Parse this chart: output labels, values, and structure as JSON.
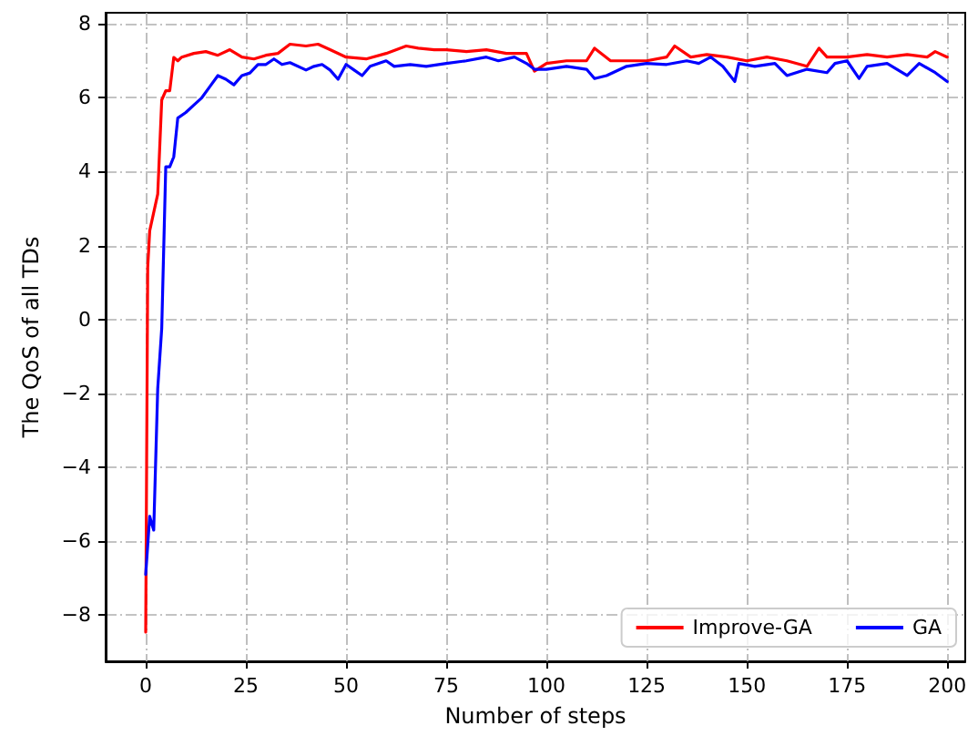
{
  "chart_data": {
    "type": "line",
    "xlabel": "Number of steps",
    "ylabel": "The QoS of all TDs",
    "xlim": [
      -10,
      204.5
    ],
    "ylim": [
      -9.25,
      8.3
    ],
    "xticks": [
      0,
      25,
      50,
      75,
      100,
      125,
      150,
      175,
      200
    ],
    "yticks": [
      -8,
      -6,
      -4,
      -2,
      0,
      2,
      4,
      6,
      8
    ],
    "grid": true,
    "legend": "bottom right",
    "marker": "none",
    "line_style": "solid",
    "series": [
      {
        "name": "Improve-GA",
        "color": "#ff0000",
        "x": [
          0,
          0.5,
          1,
          3,
          4,
          5,
          6,
          7,
          8,
          9,
          12,
          15,
          18,
          21,
          24,
          27,
          30,
          33,
          36,
          40,
          43,
          46,
          50,
          55,
          60,
          65,
          68,
          72,
          75,
          80,
          85,
          90,
          95,
          97,
          100,
          105,
          110,
          112,
          116,
          120,
          125,
          130,
          132,
          136,
          140,
          145,
          150,
          155,
          160,
          165,
          168,
          170,
          175,
          180,
          185,
          190,
          195,
          197,
          200
        ],
        "values": [
          -8.46,
          1.41,
          2.4,
          3.39,
          5.94,
          6.19,
          6.19,
          7.09,
          7.0,
          7.1,
          7.2,
          7.25,
          7.15,
          7.3,
          7.1,
          7.05,
          7.15,
          7.2,
          7.45,
          7.4,
          7.45,
          7.3,
          7.1,
          7.05,
          7.2,
          7.4,
          7.34,
          7.3,
          7.3,
          7.25,
          7.3,
          7.2,
          7.2,
          6.72,
          6.93,
          7.0,
          7.0,
          7.34,
          7.0,
          7.0,
          7.0,
          7.1,
          7.4,
          7.1,
          7.17,
          7.1,
          7.0,
          7.1,
          7.0,
          6.85,
          7.34,
          7.1,
          7.1,
          7.17,
          7.1,
          7.17,
          7.1,
          7.25,
          7.1
        ]
      },
      {
        "name": "GA",
        "color": "#0000ff",
        "x": [
          0,
          1,
          2,
          3,
          4,
          5,
          6,
          7,
          8,
          10,
          12,
          14,
          16,
          18,
          20,
          22,
          24,
          26,
          28,
          30,
          32,
          34,
          36,
          40,
          42,
          44,
          46,
          48,
          50,
          52,
          54,
          56,
          60,
          62,
          66,
          70,
          75,
          80,
          85,
          88,
          92,
          95,
          97,
          100,
          105,
          110,
          112,
          115,
          120,
          125,
          130,
          135,
          138,
          141,
          144,
          147,
          148,
          152,
          157,
          160,
          165,
          170,
          172,
          175,
          178,
          180,
          185,
          190,
          193,
          197,
          200
        ],
        "values": [
          -6.9,
          -5.33,
          -5.7,
          -1.87,
          -0.24,
          4.13,
          4.13,
          4.4,
          5.45,
          5.6,
          5.8,
          6.0,
          6.3,
          6.6,
          6.5,
          6.35,
          6.6,
          6.67,
          6.9,
          6.9,
          7.05,
          6.9,
          6.95,
          6.75,
          6.85,
          6.9,
          6.75,
          6.5,
          6.9,
          6.75,
          6.6,
          6.85,
          7.0,
          6.85,
          6.9,
          6.85,
          6.93,
          7.0,
          7.1,
          7.0,
          7.1,
          6.93,
          6.77,
          6.77,
          6.85,
          6.77,
          6.52,
          6.6,
          6.85,
          6.93,
          6.9,
          7.0,
          6.93,
          7.1,
          6.85,
          6.44,
          6.93,
          6.85,
          6.93,
          6.6,
          6.77,
          6.68,
          6.93,
          7.0,
          6.52,
          6.85,
          6.93,
          6.6,
          6.93,
          6.68,
          6.44
        ]
      }
    ]
  }
}
